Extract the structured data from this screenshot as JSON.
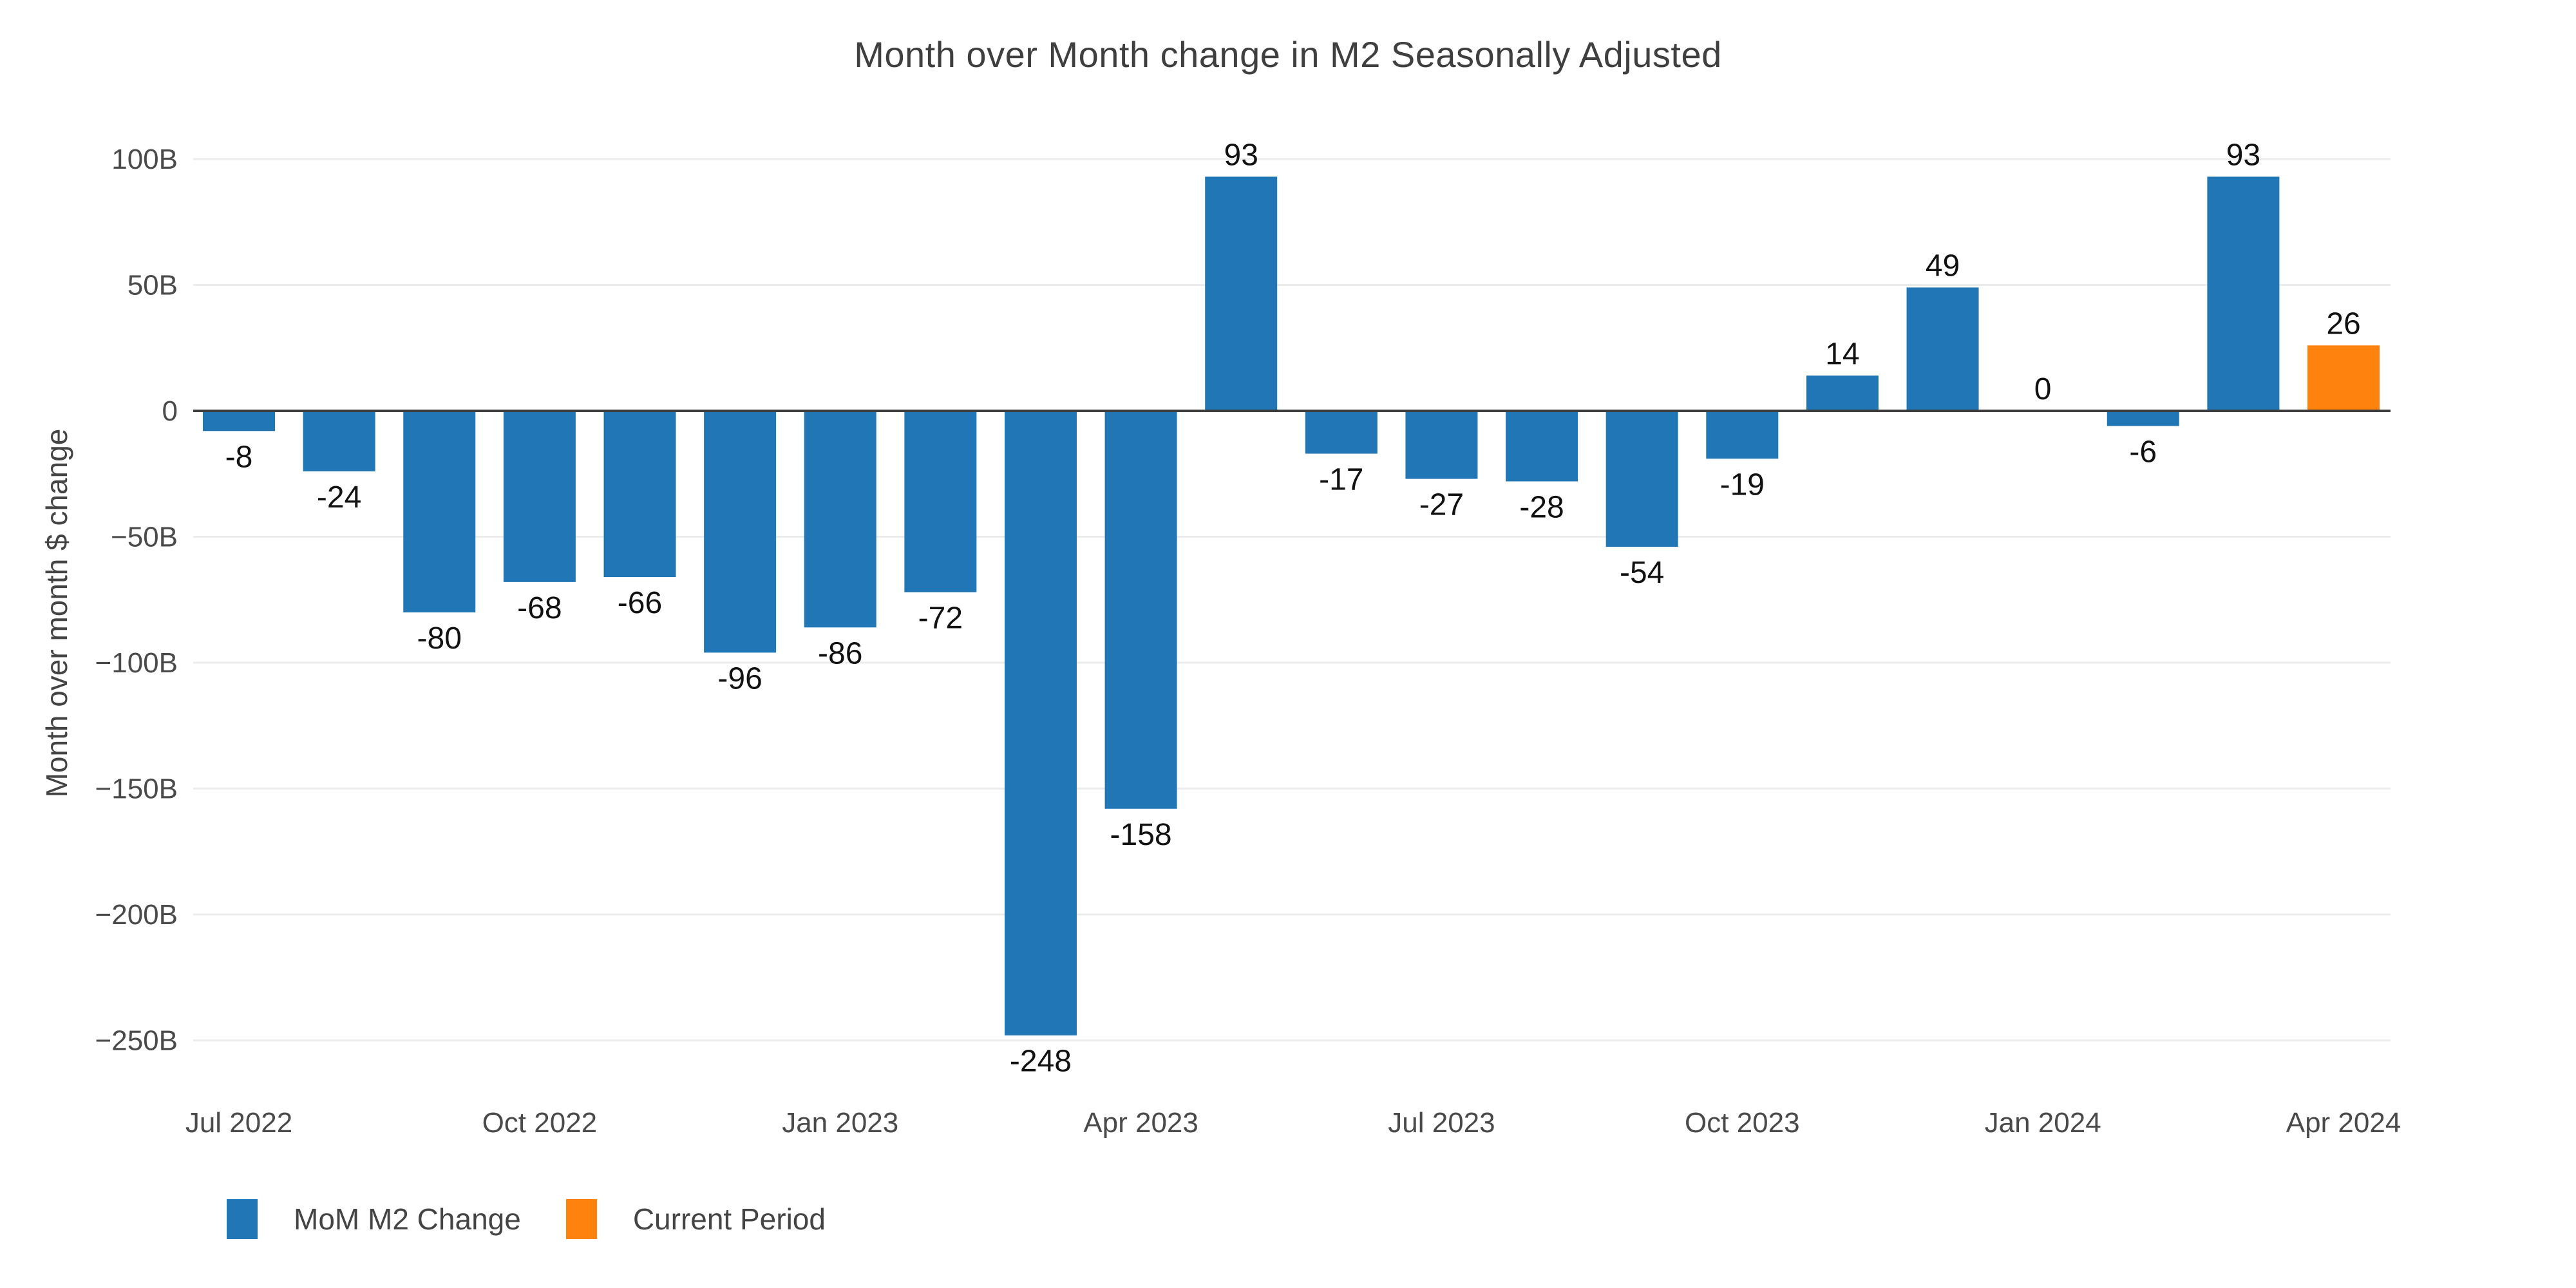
{
  "title": "Month over Month change in M2 Seasonally Adjusted",
  "chart_data": {
    "type": "bar",
    "title": "Month over Month change in M2 Seasonally Adjusted",
    "xlabel": "",
    "ylabel": "Month over month $ change",
    "categories": [
      "Jul 2022",
      "Aug 2022",
      "Sep 2022",
      "Oct 2022",
      "Nov 2022",
      "Dec 2022",
      "Jan 2023",
      "Feb 2023",
      "Mar 2023",
      "Apr 2023",
      "May 2023",
      "Jun 2023",
      "Jul 2023",
      "Aug 2023",
      "Sep 2023",
      "Oct 2023",
      "Nov 2023",
      "Dec 2023",
      "Jan 2024",
      "Feb 2024",
      "Mar 2024",
      "Apr 2024"
    ],
    "values": [
      -8,
      -24,
      -80,
      -68,
      -66,
      -96,
      -86,
      -72,
      -248,
      -158,
      93,
      -17,
      -27,
      -28,
      -54,
      -19,
      14,
      49,
      0,
      -6,
      93,
      26
    ],
    "value_labels": [
      "-8",
      "-24",
      "-80",
      "-68",
      "-66",
      "-96",
      "-86",
      "-72",
      "-248",
      "-158",
      "93",
      "-17",
      "-27",
      "-28",
      "-54",
      "-19",
      "14",
      "49",
      "0",
      "-6",
      "93",
      "26"
    ],
    "series": [
      {
        "name": "MoM M2 Change",
        "color": "#2176b5"
      },
      {
        "name": "Current Period",
        "color": "#fe830e"
      }
    ],
    "current_period_index": 21,
    "x_tick_labels": [
      "Jul 2022",
      "Oct 2022",
      "Jan 2023",
      "Apr 2023",
      "Jul 2023",
      "Oct 2023",
      "Jan 2024",
      "Apr 2024"
    ],
    "x_tick_every": 3,
    "y_ticks": [
      {
        "value": 100,
        "label": "100B"
      },
      {
        "value": 50,
        "label": "50B"
      },
      {
        "value": 0,
        "label": "0"
      },
      {
        "value": -50,
        "label": "−50B"
      },
      {
        "value": -100,
        "label": "−100B"
      },
      {
        "value": -150,
        "label": "−150B"
      },
      {
        "value": -200,
        "label": "−200B"
      },
      {
        "value": -250,
        "label": "−250B"
      }
    ],
    "ylim": [
      -270,
      110
    ],
    "grid": true,
    "legend_position": "bottom-left",
    "unit_suffix": "B"
  },
  "legend": {
    "items": [
      {
        "label": "MoM M2 Change",
        "color": "#2176b5"
      },
      {
        "label": "Current Period",
        "color": "#fe830e"
      }
    ]
  },
  "colors": {
    "bar_blue": "#2176b5",
    "bar_orange": "#fe830e",
    "gridline": "#ececec",
    "zero_line": "#3c3c3c",
    "title_text": "#3f3f3f",
    "axis_tick_text": "#4a4a4a",
    "value_label_text": "#111111",
    "background": "#ffffff"
  }
}
